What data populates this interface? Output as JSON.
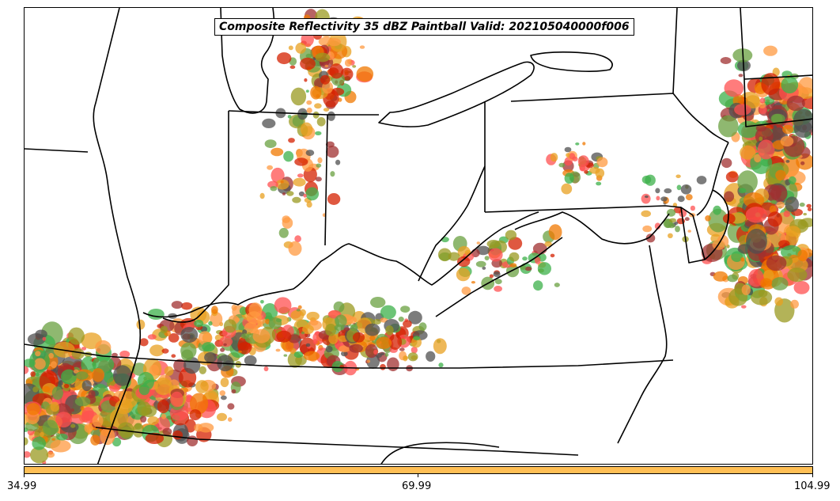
{
  "title": "Composite Reflectivity 35 dBZ Paintball Valid: 202105040000f006",
  "colorbar": {
    "color": "#ffbf55",
    "ticks": [
      "34.99",
      "69.99",
      "104.99"
    ]
  },
  "paintball_colors": [
    "#e8a020",
    "#f07800",
    "#d42000",
    "#a03030",
    "#3cb04a",
    "#6aa040",
    "#9a9a20",
    "#505050",
    "#ff5050",
    "#ff9a40"
  ],
  "map": {
    "features": [
      "state-boundaries",
      "coastlines",
      "great-lakes"
    ]
  }
}
